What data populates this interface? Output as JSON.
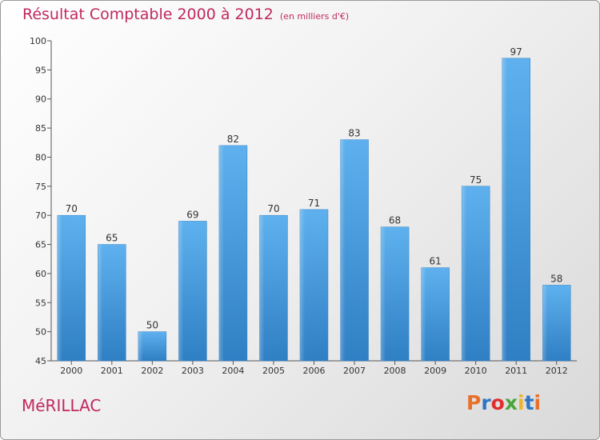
{
  "header": {
    "title": "Résultat Comptable 2000 à 2012",
    "subtitle": "(en milliers d'€)"
  },
  "footer": {
    "town": "MéRILLAC",
    "logo_letters": [
      "P",
      "r",
      "o",
      "x",
      "i",
      "t",
      "i"
    ],
    "logo_colors": [
      "#e8702a",
      "#2e76c4",
      "#e02d2d",
      "#4aa53a",
      "#f0b429",
      "#2e76c4",
      "#e8702a"
    ]
  },
  "chart_data": {
    "type": "bar",
    "categories": [
      "2000",
      "2001",
      "2002",
      "2003",
      "2004",
      "2005",
      "2006",
      "2007",
      "2008",
      "2009",
      "2010",
      "2011",
      "2012"
    ],
    "values": [
      70,
      65,
      50,
      69,
      82,
      70,
      71,
      83,
      68,
      61,
      75,
      97,
      58
    ],
    "data_labels": [
      "70",
      "65",
      "50",
      "69",
      "82",
      "70",
      "71",
      "83",
      "68",
      "61",
      "75",
      "97",
      "58"
    ],
    "ylim": [
      45,
      100
    ],
    "yticks": [
      45,
      50,
      55,
      60,
      65,
      70,
      75,
      80,
      85,
      90,
      95,
      100
    ],
    "grid": false,
    "bar_color": "#4a9fe0"
  }
}
